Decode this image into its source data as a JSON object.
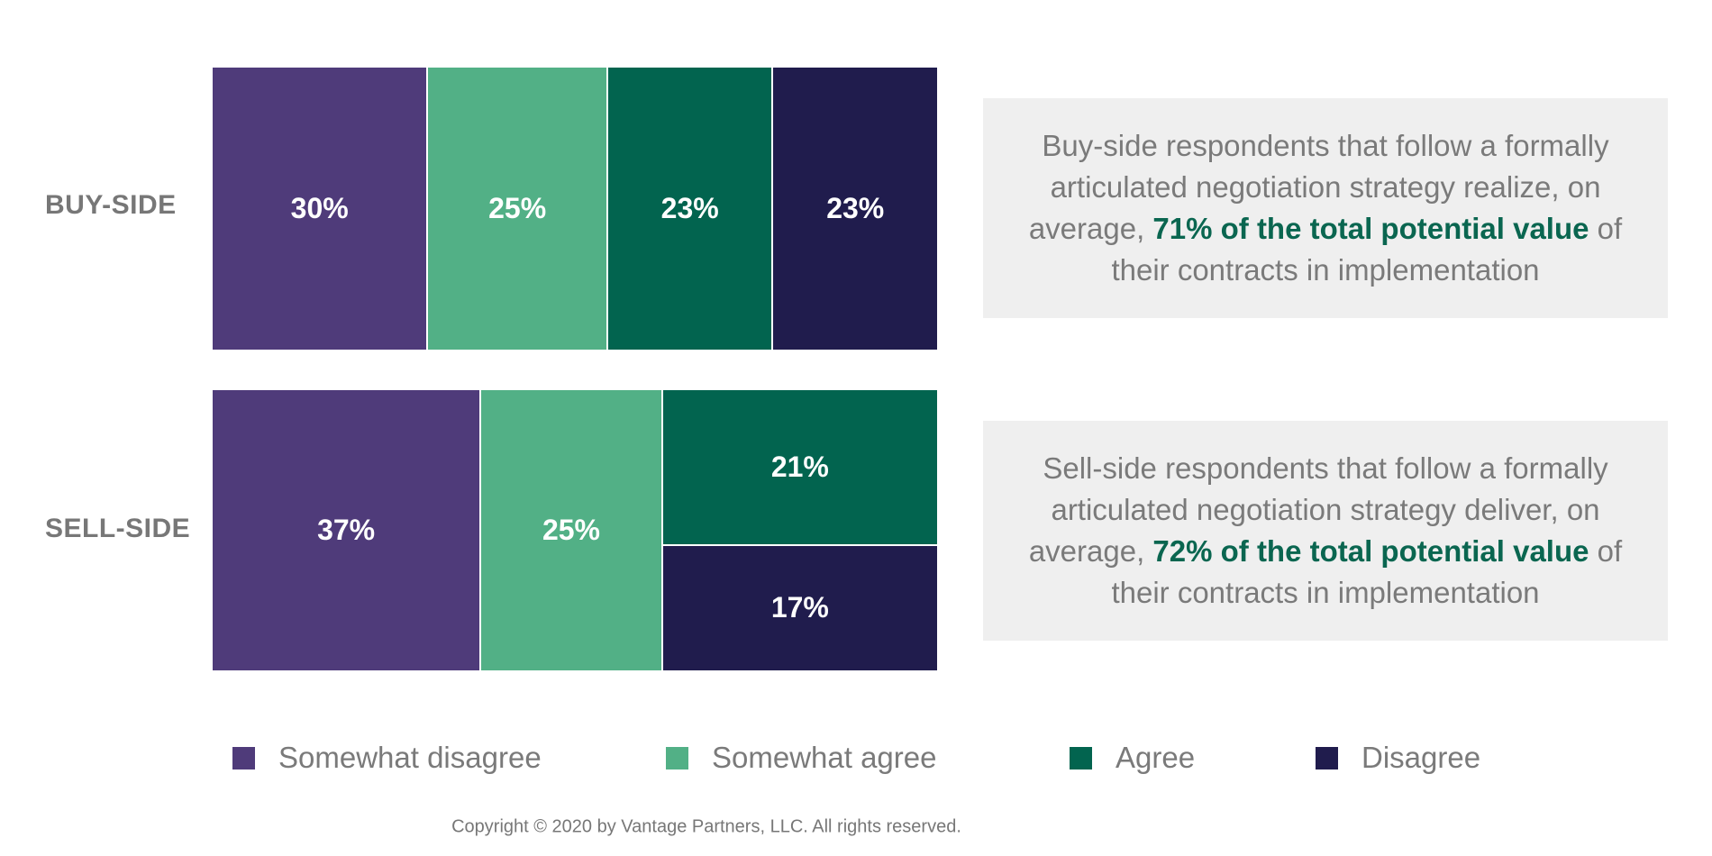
{
  "chart_data": {
    "type": "bar",
    "stacked": true,
    "categories": [
      "BUY-SIDE",
      "SELL-SIDE"
    ],
    "series": [
      {
        "name": "Somewhat disagree",
        "color": "#4f3b7a",
        "values": [
          30,
          37
        ]
      },
      {
        "name": "Somewhat agree",
        "color": "#52b086",
        "values": [
          25,
          25
        ]
      },
      {
        "name": "Agree",
        "color": "#02644f",
        "values": [
          23,
          21
        ]
      },
      {
        "name": "Disagree",
        "color": "#201c4d",
        "values": [
          23,
          17
        ]
      }
    ],
    "value_labels": [
      [
        "30%",
        "25%",
        "23%",
        "23%"
      ],
      [
        "37%",
        "25%",
        "21%",
        "17%"
      ]
    ],
    "legend_position": "bottom",
    "grid": false
  },
  "callouts": [
    {
      "pre": "Buy-side respondents that follow a formally articulated negotiation strategy realize, on average, ",
      "bold": "71% of the total potential value",
      "post": " of their contracts in implementation"
    },
    {
      "pre": "Sell-side respondents that follow a formally articulated negotiation strategy deliver, on average, ",
      "bold": "72% of the total potential value",
      "post": " of their contracts in implementation"
    }
  ],
  "copyright": "Copyright © 2020 by Vantage Partners, LLC. All rights reserved."
}
